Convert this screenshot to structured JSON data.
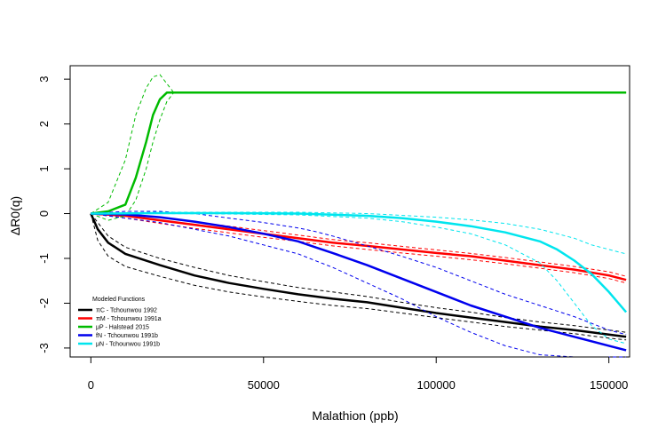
{
  "chart_data": {
    "type": "line",
    "xlabel": "Malathion (ppb)",
    "ylabel": "ΔR0(q)",
    "xlim": [
      -6000,
      156000
    ],
    "ylim": [
      -3.2,
      3.3
    ],
    "x_ticks": [
      0,
      50000,
      100000,
      150000
    ],
    "y_ticks": [
      3,
      2,
      1,
      0,
      -1,
      -2,
      -3
    ],
    "grid": false,
    "legend": {
      "title": "Modeled Functions",
      "placement": "bottom-left"
    },
    "series": [
      {
        "name": "πC - Tchounwou 1992",
        "color": "#000000",
        "x": [
          0,
          2000,
          5000,
          10000,
          20000,
          30000,
          40000,
          50000,
          60000,
          70000,
          80000,
          90000,
          100000,
          110000,
          120000,
          130000,
          140000,
          150000,
          155000
        ],
        "values": [
          0,
          -0.35,
          -0.65,
          -0.9,
          -1.15,
          -1.38,
          -1.55,
          -1.68,
          -1.8,
          -1.9,
          -1.98,
          -2.1,
          -2.22,
          -2.32,
          -2.42,
          -2.52,
          -2.6,
          -2.7,
          -2.75
        ],
        "lower": [
          0,
          -0.6,
          -0.95,
          -1.18,
          -1.4,
          -1.6,
          -1.75,
          -1.86,
          -1.96,
          -2.05,
          -2.12,
          -2.22,
          -2.32,
          -2.42,
          -2.52,
          -2.6,
          -2.68,
          -2.78,
          -2.82
        ],
        "upper": [
          0,
          -0.2,
          -0.5,
          -0.75,
          -1.0,
          -1.2,
          -1.38,
          -1.52,
          -1.65,
          -1.75,
          -1.85,
          -1.98,
          -2.1,
          -2.2,
          -2.32,
          -2.42,
          -2.5,
          -2.6,
          -2.65
        ]
      },
      {
        "name": "πM - Tchounwou 1991a",
        "color": "#ff0000",
        "x": [
          0,
          10000,
          20000,
          30000,
          40000,
          50000,
          60000,
          70000,
          80000,
          90000,
          100000,
          110000,
          120000,
          130000,
          140000,
          150000,
          155000
        ],
        "values": [
          0,
          -0.05,
          -0.15,
          -0.25,
          -0.35,
          -0.45,
          -0.55,
          -0.65,
          -0.72,
          -0.8,
          -0.88,
          -0.95,
          -1.05,
          -1.15,
          -1.25,
          -1.38,
          -1.48
        ],
        "lower": [
          0,
          -0.1,
          -0.22,
          -0.33,
          -0.43,
          -0.53,
          -0.62,
          -0.72,
          -0.8,
          -0.88,
          -0.95,
          -1.03,
          -1.12,
          -1.22,
          -1.32,
          -1.45,
          -1.55
        ],
        "upper": [
          0,
          0.0,
          -0.08,
          -0.18,
          -0.28,
          -0.38,
          -0.48,
          -0.58,
          -0.65,
          -0.73,
          -0.81,
          -0.89,
          -0.98,
          -1.08,
          -1.18,
          -1.3,
          -1.4
        ]
      },
      {
        "name": "μP - Halstead 2015",
        "color": "#00bb00",
        "x": [
          0,
          5000,
          10000,
          13000,
          16000,
          18000,
          20000,
          22000,
          24000,
          50000,
          100000,
          150000,
          155000
        ],
        "values": [
          0,
          0.05,
          0.2,
          0.8,
          1.6,
          2.2,
          2.55,
          2.7,
          2.7,
          2.7,
          2.7,
          2.7,
          2.7
        ],
        "lower": [
          0,
          -0.15,
          -0.05,
          0.3,
          1.0,
          1.6,
          2.1,
          2.5,
          2.7,
          2.7,
          2.7,
          2.7,
          2.7
        ],
        "upper": [
          0,
          0.25,
          1.2,
          2.2,
          2.8,
          3.05,
          3.1,
          2.9,
          2.7,
          2.7,
          2.7,
          2.7,
          2.7
        ]
      },
      {
        "name": "fN - Tchounwou 1991b",
        "color": "#0000ee",
        "x": [
          0,
          10000,
          20000,
          30000,
          40000,
          50000,
          60000,
          65000,
          70000,
          80000,
          90000,
          100000,
          110000,
          120000,
          130000,
          140000,
          150000,
          155000
        ],
        "values": [
          0,
          -0.02,
          -0.08,
          -0.18,
          -0.3,
          -0.45,
          -0.62,
          -0.75,
          -0.88,
          -1.15,
          -1.45,
          -1.75,
          -2.05,
          -2.3,
          -2.55,
          -2.75,
          -2.95,
          -3.05
        ],
        "lower": [
          0,
          -0.1,
          -0.2,
          -0.35,
          -0.5,
          -0.7,
          -0.9,
          -1.05,
          -1.2,
          -1.55,
          -1.9,
          -2.3,
          -2.65,
          -2.95,
          -3.15,
          -3.25,
          -3.3,
          -3.3
        ],
        "upper": [
          0,
          0.05,
          0.05,
          0.0,
          -0.1,
          -0.2,
          -0.32,
          -0.4,
          -0.5,
          -0.72,
          -0.95,
          -1.2,
          -1.5,
          -1.8,
          -2.05,
          -2.3,
          -2.6,
          -2.7
        ]
      },
      {
        "name": "μN - Tchounwou 1991b",
        "color": "#00e5ee",
        "x": [
          0,
          20000,
          40000,
          60000,
          80000,
          90000,
          100000,
          110000,
          120000,
          130000,
          135000,
          140000,
          145000,
          150000,
          155000
        ],
        "values": [
          0,
          0.01,
          0.01,
          0.0,
          -0.05,
          -0.1,
          -0.18,
          -0.28,
          -0.42,
          -0.62,
          -0.8,
          -1.05,
          -1.35,
          -1.75,
          -2.2
        ],
        "lower": [
          0,
          0.0,
          -0.01,
          -0.03,
          -0.1,
          -0.18,
          -0.3,
          -0.45,
          -0.7,
          -1.1,
          -1.5,
          -2.0,
          -2.5,
          -2.8,
          -2.9
        ],
        "upper": [
          0,
          0.03,
          0.03,
          0.03,
          0.0,
          -0.04,
          -0.08,
          -0.14,
          -0.22,
          -0.35,
          -0.45,
          -0.55,
          -0.7,
          -0.8,
          -0.9
        ]
      }
    ]
  }
}
